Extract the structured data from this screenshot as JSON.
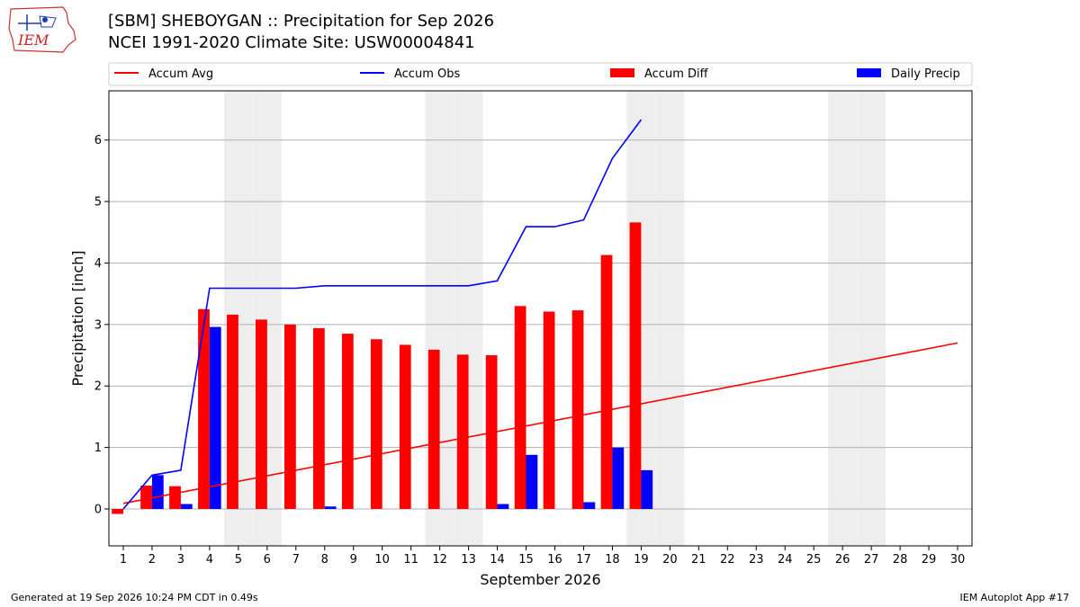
{
  "header": {
    "title_line1": "[SBM] SHEBOYGAN :: Precipitation for Sep 2026",
    "title_line2": "NCEI 1991-2020 Climate Site: USW00004841"
  },
  "logo": {
    "text": "IEM"
  },
  "footer": {
    "left": "Generated at 19 Sep 2026 10:24 PM CDT in 0.49s",
    "right": "IEM Autoplot App #17"
  },
  "colors": {
    "avg": "#ff0000",
    "obs": "#0000ff",
    "diff": "#ff0000",
    "daily": "#0000ff",
    "weekend": "#eeeeee",
    "grid": "#b0b0b0"
  },
  "chart_data": {
    "type": "bar",
    "xlabel": "September 2026",
    "ylabel": "Precipitation [inch]",
    "xlim": [
      0.5,
      30.5
    ],
    "ylim": [
      -0.6,
      6.8
    ],
    "yticks": [
      0,
      1,
      2,
      3,
      4,
      5,
      6
    ],
    "days": [
      1,
      2,
      3,
      4,
      5,
      6,
      7,
      8,
      9,
      10,
      11,
      12,
      13,
      14,
      15,
      16,
      17,
      18,
      19,
      20,
      21,
      22,
      23,
      24,
      25,
      26,
      27,
      28,
      29,
      30
    ],
    "weekend_days": [
      5,
      6,
      12,
      13,
      19,
      20,
      26,
      27
    ],
    "legend": [
      {
        "label": "Accum Avg",
        "kind": "line",
        "color": "#ff0000"
      },
      {
        "label": "Accum Obs",
        "kind": "line",
        "color": "#0000ff"
      },
      {
        "label": "Accum Diff",
        "kind": "bar",
        "color": "#ff0000"
      },
      {
        "label": "Daily Precip",
        "kind": "bar",
        "color": "#0000ff"
      }
    ],
    "series": [
      {
        "name": "Accum Avg",
        "type": "line",
        "x": [
          1,
          30
        ],
        "values": [
          0.09,
          2.7
        ]
      },
      {
        "name": "Accum Obs",
        "type": "line",
        "x": [
          1,
          2,
          3,
          4,
          5,
          6,
          7,
          8,
          9,
          10,
          11,
          12,
          13,
          14,
          15,
          16,
          17,
          18,
          19
        ],
        "values": [
          0.0,
          0.55,
          0.63,
          3.59,
          3.59,
          3.59,
          3.59,
          3.63,
          3.63,
          3.63,
          3.63,
          3.63,
          3.63,
          3.71,
          4.59,
          4.59,
          4.7,
          5.7,
          6.33
        ]
      },
      {
        "name": "Accum Diff",
        "type": "bar",
        "x": [
          1,
          2,
          3,
          4,
          5,
          6,
          7,
          8,
          9,
          10,
          11,
          12,
          13,
          14,
          15,
          16,
          17,
          18,
          19
        ],
        "values": [
          -0.08,
          0.38,
          0.37,
          3.25,
          3.16,
          3.08,
          3.0,
          2.94,
          2.85,
          2.76,
          2.67,
          2.59,
          2.51,
          2.5,
          3.3,
          3.21,
          3.23,
          4.13,
          4.66
        ]
      },
      {
        "name": "Daily Precip",
        "type": "bar",
        "x": [
          1,
          2,
          3,
          4,
          5,
          6,
          7,
          8,
          9,
          10,
          11,
          12,
          13,
          14,
          15,
          16,
          17,
          18,
          19
        ],
        "values": [
          0.0,
          0.55,
          0.08,
          2.96,
          0.0,
          0.0,
          0.0,
          0.04,
          0.0,
          0.0,
          0.0,
          0.0,
          0.0,
          0.08,
          0.88,
          0.0,
          0.11,
          1.0,
          0.63
        ]
      }
    ]
  }
}
